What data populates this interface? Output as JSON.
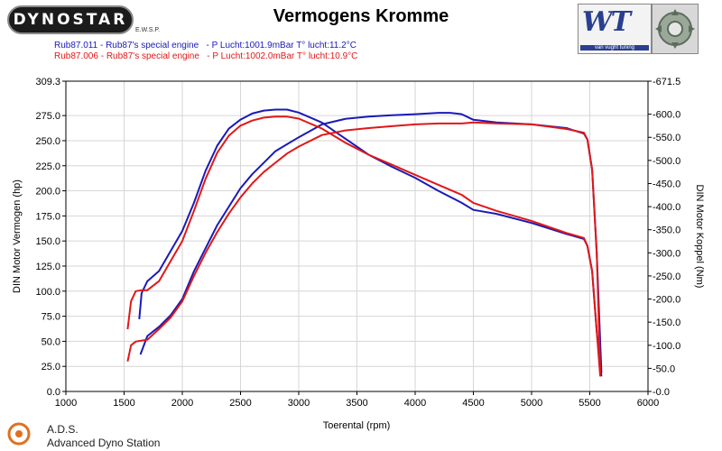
{
  "header": {
    "logo_left": "DYNOSTAR",
    "logo_left_small": "E.W.S.P.",
    "title": "Vermogens Kromme",
    "logo_right": "WT",
    "logo_right_sub": "van vught tuning"
  },
  "runs": [
    {
      "text": "Rub87.011 - Rub87's special engine   - P Lucht:1001.9mBar T° lucht:11.2°C",
      "color": "#1a1ab8"
    },
    {
      "text": "Rub87.006 - Rub87's special engine   - P Lucht:1002.0mBar T° lucht:10.9°C",
      "color": "#e01818"
    }
  ],
  "footer": {
    "ads_short": "A.D.S.",
    "ads_full": "Advanced Dyno Station"
  },
  "chart_data": {
    "type": "line",
    "xlabel": "Toerental (rpm)",
    "ylabel": "DIN Motor Vermogen (hp)",
    "y2label": "DIN Motor Koppel (Nm)",
    "xlim": [
      1000,
      6000
    ],
    "ylim": [
      0,
      309.3
    ],
    "y2lim": [
      0,
      671.5
    ],
    "x_ticks": [
      "1000",
      "1500",
      "2000",
      "2500",
      "3000",
      "3500",
      "4000",
      "4500",
      "5000",
      "5500",
      "6000"
    ],
    "y_ticks": [
      "0.0",
      "25.0",
      "50.0",
      "75.0",
      "100.0",
      "125.0",
      "150.0",
      "175.0",
      "200.0",
      "225.0",
      "250.0",
      "275.0",
      "309.3"
    ],
    "y2_ticks": [
      "-0.0",
      "-50.0",
      "-100.0",
      "-150.0",
      "-200.0",
      "-250.0",
      "-300.0",
      "-350.0",
      "-400.0",
      "-450.0",
      "-500.0",
      "-550.0",
      "-600.0",
      "-671.5"
    ],
    "grid": true,
    "series": [
      {
        "name": "Rub87.011 power (hp)",
        "axis": "left",
        "color": "#1a1ab8",
        "x": [
          1630,
          1650,
          1700,
          1800,
          1900,
          2000,
          2100,
          2200,
          2300,
          2400,
          2500,
          2600,
          2700,
          2800,
          2900,
          3000,
          3200,
          3400,
          3600,
          3800,
          4000,
          4200,
          4400,
          4500,
          4700,
          5000,
          5300,
          5450,
          5480,
          5520,
          5560,
          5600
        ],
        "y": [
          72,
          98,
          110,
          120,
          140,
          160,
          188,
          220,
          245,
          262,
          271,
          277,
          280,
          281,
          281,
          278,
          268,
          252,
          236,
          224,
          213,
          200,
          188,
          181,
          177,
          168,
          157,
          152,
          145,
          120,
          60,
          15
        ]
      },
      {
        "name": "Rub87.011 torque (Nm)",
        "axis": "right",
        "color": "#1a1ab8",
        "x": [
          1640,
          1700,
          1800,
          1900,
          2000,
          2100,
          2200,
          2300,
          2400,
          2500,
          2600,
          2700,
          2800,
          2900,
          3000,
          3200,
          3400,
          3600,
          3800,
          4000,
          4200,
          4300,
          4400,
          4500,
          4700,
          5000,
          5300,
          5450,
          5480,
          5520,
          5560,
          5600
        ],
        "y": [
          80,
          120,
          140,
          165,
          200,
          260,
          310,
          360,
          400,
          440,
          470,
          495,
          520,
          535,
          550,
          578,
          590,
          595,
          598,
          600,
          603,
          603,
          600,
          588,
          582,
          578,
          570,
          558,
          545,
          480,
          300,
          40
        ]
      },
      {
        "name": "Rub87.006 power (hp)",
        "axis": "left",
        "color": "#e01818",
        "x": [
          1530,
          1560,
          1600,
          1650,
          1700,
          1800,
          1900,
          2000,
          2100,
          2200,
          2300,
          2400,
          2500,
          2600,
          2700,
          2800,
          2900,
          3000,
          3200,
          3400,
          3600,
          3800,
          4000,
          4200,
          4400,
          4500,
          4700,
          5000,
          5300,
          5450,
          5480,
          5520,
          5560,
          5590
        ],
        "y": [
          62,
          90,
          100,
          101,
          101,
          110,
          130,
          150,
          180,
          212,
          238,
          255,
          265,
          270,
          273,
          274,
          274,
          272,
          262,
          248,
          236,
          226,
          216,
          206,
          196,
          188,
          180,
          170,
          158,
          153,
          145,
          120,
          60,
          15
        ]
      },
      {
        "name": "Rub87.006 torque (Nm)",
        "axis": "right",
        "color": "#e01818",
        "x": [
          1530,
          1560,
          1600,
          1700,
          1800,
          1900,
          2000,
          2100,
          2200,
          2300,
          2400,
          2500,
          2600,
          2700,
          2800,
          2900,
          3000,
          3200,
          3400,
          3600,
          3800,
          4000,
          4200,
          4400,
          4500,
          4700,
          5000,
          5300,
          5450,
          5480,
          5520,
          5560,
          5590
        ],
        "y": [
          65,
          100,
          108,
          112,
          135,
          160,
          195,
          250,
          300,
          345,
          385,
          420,
          450,
          475,
          495,
          515,
          530,
          555,
          565,
          570,
          574,
          578,
          580,
          580,
          582,
          580,
          578,
          568,
          560,
          545,
          480,
          300,
          40
        ]
      }
    ]
  }
}
